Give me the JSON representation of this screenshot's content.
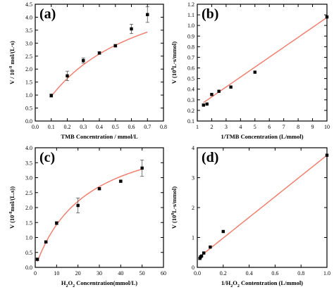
{
  "chart_data": [
    {
      "panel": "(a)",
      "type": "scatter",
      "xlabel": "TMB Concentration / mmol/L",
      "ylabel": "V / 10-8 mol/(L·s)",
      "xlim": [
        0.0,
        0.8
      ],
      "ylim": [
        0.0,
        4.5
      ],
      "xticks": [
        "0.0",
        "0.1",
        "0.2",
        "0.3",
        "0.4",
        "0.5",
        "0.6",
        "0.7",
        "0.8"
      ],
      "yticks": [
        "0.0",
        "0.5",
        "1.0",
        "1.5",
        "2.0",
        "2.5",
        "3.0",
        "3.5",
        "4.0",
        "4.5"
      ],
      "x": [
        0.1,
        0.2,
        0.3,
        0.4,
        0.5,
        0.6,
        0.7
      ],
      "y": [
        0.98,
        1.74,
        2.33,
        2.62,
        2.9,
        3.55,
        4.1
      ],
      "yerr": [
        0.06,
        0.18,
        0.1,
        0.05,
        0.05,
        0.18,
        0.3
      ],
      "fit": {
        "type": "michaelis-menten",
        "vmax": 6.07,
        "km": 0.54,
        "range": [
          0.1,
          0.7
        ]
      }
    },
    {
      "panel": "(b)",
      "type": "scatter",
      "xlabel": "1/TMB Concentration (L/mmol)",
      "ylabel": "V (10^8 L·s/mmol)",
      "xlim": [
        1,
        10
      ],
      "ylim": [
        0.1,
        1.2
      ],
      "xticks": [
        "1",
        "2",
        "3",
        "4",
        "5",
        "6",
        "7",
        "8",
        "9",
        "10"
      ],
      "yticks": [
        "0.1",
        "0.2",
        "0.3",
        "0.4",
        "0.5",
        "0.6",
        "0.7",
        "0.8",
        "0.9",
        "1.0",
        "1.1",
        "1.2"
      ],
      "x": [
        1.43,
        1.67,
        2.0,
        2.5,
        3.33,
        5.0,
        10.0
      ],
      "y": [
        0.25,
        0.26,
        0.35,
        0.38,
        0.42,
        0.56,
        1.08
      ],
      "fit": {
        "type": "linear",
        "slope": 0.0935,
        "intercept": 0.14,
        "range": [
          1.43,
          10.0
        ]
      }
    },
    {
      "panel": "(c)",
      "type": "scatter",
      "xlabel": "H2O2 Concentration(mmol/L)",
      "ylabel": "V (10-8 mol/(L.s))",
      "xlim": [
        0,
        60
      ],
      "ylim": [
        0.0,
        4.0
      ],
      "xticks": [
        "0",
        "10",
        "20",
        "30",
        "40",
        "50",
        "60"
      ],
      "yticks": [
        "0.0",
        "0.5",
        "1.0",
        "1.5",
        "2.0",
        "2.5",
        "3.0",
        "3.5",
        "4.0"
      ],
      "x": [
        1,
        5,
        10,
        20,
        30,
        40,
        50
      ],
      "y": [
        0.27,
        0.85,
        1.48,
        2.07,
        2.63,
        2.88,
        3.32
      ],
      "yerr": [
        0.04,
        0.03,
        0.05,
        0.25,
        0.03,
        0.03,
        0.27
      ],
      "fit": {
        "type": "michaelis-menten",
        "vmax": 4.87,
        "km": 24.1,
        "range": [
          1,
          50
        ]
      }
    },
    {
      "panel": "(d)",
      "type": "scatter",
      "xlabel": "1/H2O2 Contentration (L/mmol)",
      "ylabel": "V (10^8 L·s/mmol)",
      "xlim": [
        0.0,
        1.0
      ],
      "ylim": [
        0,
        4
      ],
      "xticks": [
        "0.0",
        "0.2",
        "0.4",
        "0.6",
        "0.8",
        "1.0"
      ],
      "yticks": [
        "0",
        "1",
        "2",
        "3",
        "4"
      ],
      "x": [
        0.02,
        0.025,
        0.033,
        0.05,
        0.1,
        0.2,
        1.0
      ],
      "y": [
        0.3,
        0.35,
        0.38,
        0.48,
        0.68,
        1.2,
        3.75
      ],
      "fit": {
        "type": "linear",
        "slope": 3.46,
        "intercept": 0.29,
        "range": [
          0.02,
          1.0
        ]
      }
    }
  ],
  "colors": {
    "fit": "#f08070",
    "marker": "#000000",
    "axis": "#000000"
  }
}
